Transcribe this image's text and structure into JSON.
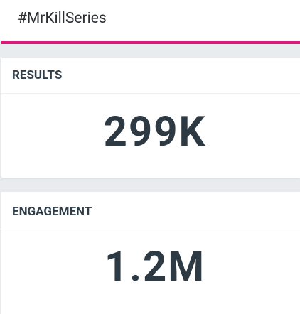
{
  "header": {
    "title": "#MrKillSeries"
  },
  "cards": [
    {
      "label": "RESULTS",
      "value": "299K"
    },
    {
      "label": "ENGAGEMENT",
      "value": "1.2M"
    }
  ]
}
